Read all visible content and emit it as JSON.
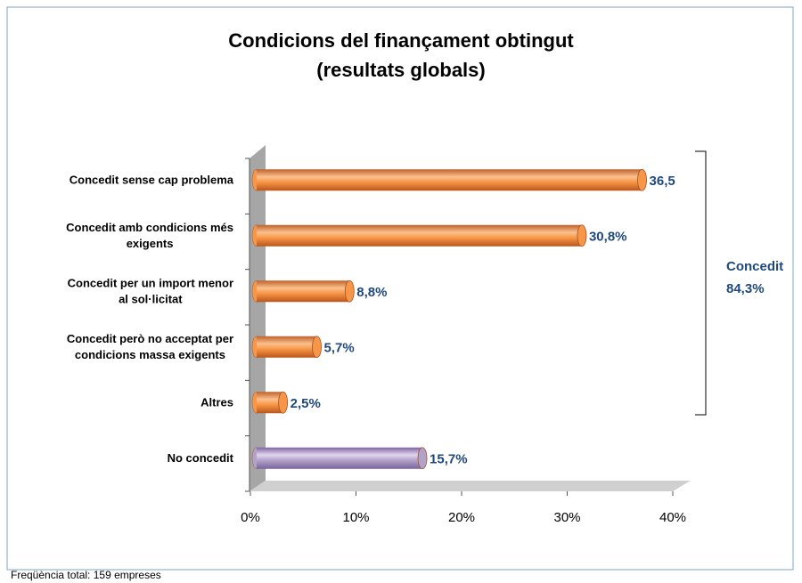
{
  "chart_data": {
    "type": "bar",
    "title": [
      "Condicions del finançament obtingut",
      "(resultats globals)"
    ],
    "categories": [
      [
        "Concedit sense cap problema"
      ],
      [
        "Concedit amb condicions més",
        "exigents"
      ],
      [
        "Concedit per un import menor",
        "al sol·licitat"
      ],
      [
        "Concedit però no acceptat per",
        "condicions massa exigents"
      ],
      [
        "Altres"
      ],
      [
        "No concedit"
      ]
    ],
    "values": [
      36.5,
      30.8,
      8.8,
      5.7,
      2.5,
      15.7
    ],
    "value_labels": [
      "36,5",
      "30,8%",
      "8,8%",
      "5,7%",
      "2,5%",
      "15,7%"
    ],
    "colors": [
      "#f79646",
      "#f79646",
      "#f79646",
      "#f79646",
      "#f79646",
      "#b3a2c7"
    ],
    "xlim": [
      0,
      40
    ],
    "xticks": [
      {
        "value": 0,
        "label": "0%"
      },
      {
        "value": 10,
        "label": "10%"
      },
      {
        "value": 20,
        "label": "20%"
      },
      {
        "value": 30,
        "label": "30%"
      },
      {
        "value": 40,
        "label": "40%"
      }
    ],
    "annotation": [
      "Concedit",
      "84,3%"
    ],
    "footnote": "Freqüència total: 159 empreses"
  }
}
